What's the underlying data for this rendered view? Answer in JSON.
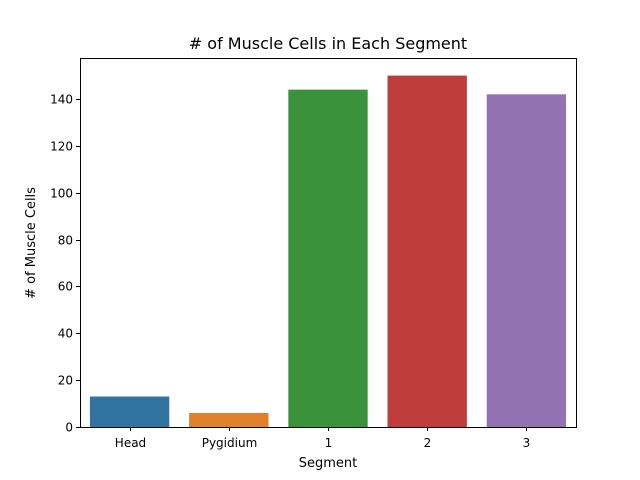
{
  "chart_data": {
    "type": "bar",
    "title": "# of Muscle Cells in Each Segment",
    "xlabel": "Segment",
    "ylabel": "# of Muscle Cells",
    "categories": [
      "Head",
      "Pygidium",
      "1",
      "2",
      "3"
    ],
    "values": [
      13,
      6,
      144,
      150,
      142
    ],
    "colors": [
      "#3274a1",
      "#e1812c",
      "#3a923a",
      "#c03d3e",
      "#9372b2"
    ],
    "ylim": [
      0,
      157.5
    ],
    "yticks": [
      0,
      20,
      40,
      60,
      80,
      100,
      120,
      140
    ],
    "grid": false,
    "legend": false
  }
}
